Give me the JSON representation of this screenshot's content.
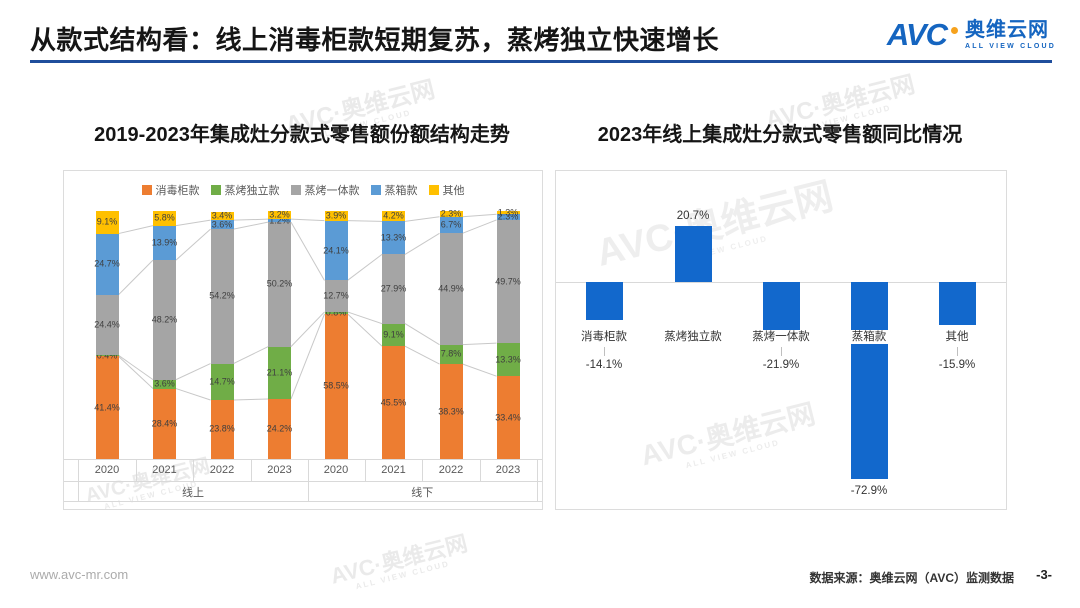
{
  "header": {
    "title": "从款式结构看：线上消毒柜款短期复苏，蒸烤独立快速增长",
    "underline_color": "#1F4E9C",
    "logo": {
      "avc": "AVC",
      "name": "奥维云网",
      "tagline": "ALL VIEW CLOUD",
      "blue": "#1565C0",
      "orange": "#F6A21D"
    }
  },
  "footer": {
    "website": "www.avc-mr.com",
    "source": "数据来源：奥维云网（AVC）监测数据",
    "page": "-3-"
  },
  "watermark": {
    "line1": "AVC·奥维云网",
    "line2": "ALL VIEW CLOUD"
  },
  "chart_data": [
    {
      "type": "bar",
      "subtype": "stacked-100pct",
      "title": "2019-2023年集成灶分款式零售额份额结构走势",
      "groups": [
        {
          "label": "线上",
          "span": 4
        },
        {
          "label": "线下",
          "span": 4
        }
      ],
      "categories": [
        "2020",
        "2021",
        "2022",
        "2023",
        "2020",
        "2021",
        "2022",
        "2023"
      ],
      "series": [
        {
          "name": "消毒柜款",
          "color": "#ED7D31",
          "values": [
            41.4,
            28.4,
            23.8,
            24.2,
            58.5,
            45.5,
            38.3,
            33.4
          ]
        },
        {
          "name": "蒸烤独立款",
          "color": "#70AD47",
          "values": [
            0.4,
            3.6,
            14.7,
            21.1,
            0.8,
            9.1,
            7.8,
            13.3
          ]
        },
        {
          "name": "蒸烤一体款",
          "color": "#A5A5A5",
          "values": [
            24.4,
            48.2,
            54.2,
            50.2,
            12.7,
            27.9,
            44.9,
            49.7
          ]
        },
        {
          "name": "蒸箱款",
          "color": "#5B9BD5",
          "values": [
            24.7,
            13.9,
            3.6,
            1.2,
            24.1,
            13.3,
            6.7,
            2.3
          ]
        },
        {
          "name": "其他",
          "color": "#FFC000",
          "values": [
            9.1,
            5.8,
            3.4,
            3.2,
            3.9,
            4.2,
            2.3,
            1.3
          ]
        }
      ],
      "unit": "%",
      "ylim": [
        0,
        100
      ],
      "legend_position": "top",
      "grid": false,
      "connector_lines": true
    },
    {
      "type": "bar",
      "title": "2023年线上集成灶分款式零售额同比情况",
      "categories": [
        "消毒柜款",
        "蒸烤独立款",
        "蒸烤一体款",
        "蒸箱款",
        "其他"
      ],
      "values": [
        -14.1,
        20.7,
        -21.9,
        -72.9,
        -15.9
      ],
      "bar_color": "#1268CC",
      "unit": "%",
      "ylim": [
        -80,
        30
      ],
      "grid": false
    }
  ]
}
